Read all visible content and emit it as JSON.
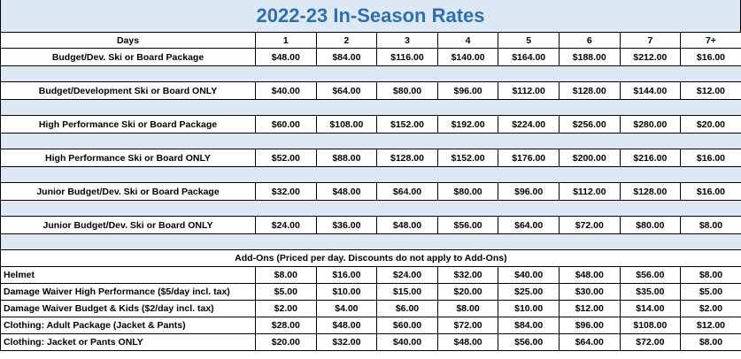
{
  "title": "2022-23 In-Season Rates",
  "header": {
    "days_label": "Days",
    "columns": [
      "1",
      "2",
      "3",
      "4",
      "5",
      "6",
      "7",
      "7+"
    ]
  },
  "packages": [
    {
      "name": "Budget/Dev. Ski or Board Package",
      "prices": [
        "$48.00",
        "$84.00",
        "$116.00",
        "$140.00",
        "$164.00",
        "$188.00",
        "$212.00",
        "$16.00"
      ]
    },
    {
      "name": "Budget/Development Ski or Board ONLY",
      "prices": [
        "$40.00",
        "$64.00",
        "$80.00",
        "$96.00",
        "$112.00",
        "$128.00",
        "$144.00",
        "$12.00"
      ]
    },
    {
      "name": "High Performance Ski or Board Package",
      "prices": [
        "$60.00",
        "$108.00",
        "$152.00",
        "$192.00",
        "$224.00",
        "$256.00",
        "$280.00",
        "$20.00"
      ]
    },
    {
      "name": "High Performance Ski or Board ONLY",
      "prices": [
        "$52.00",
        "$88.00",
        "$128.00",
        "$152.00",
        "$176.00",
        "$200.00",
        "$216.00",
        "$16.00"
      ]
    },
    {
      "name": "Junior Budget/Dev. Ski or Board Package",
      "prices": [
        "$32.00",
        "$48.00",
        "$64.00",
        "$80.00",
        "$96.00",
        "$112.00",
        "$128.00",
        "$16.00"
      ]
    },
    {
      "name": "Junior Budget/Dev. Ski or Board ONLY",
      "prices": [
        "$24.00",
        "$36.00",
        "$48.00",
        "$56.00",
        "$64.00",
        "$72.00",
        "$80.00",
        "$8.00"
      ]
    }
  ],
  "addons_header": "Add-Ons (Priced per day. Discounts do not apply to Add-Ons)",
  "addons": [
    {
      "name": "Helmet",
      "prices": [
        "$8.00",
        "$16.00",
        "$24.00",
        "$32.00",
        "$40.00",
        "$48.00",
        "$56.00",
        "$8.00"
      ]
    },
    {
      "name": "Damage Waiver High Performance ($5/day incl. tax)",
      "prices": [
        "$5.00",
        "$10.00",
        "$15.00",
        "$20.00",
        "$25.00",
        "$30.00",
        "$35.00",
        "$5.00"
      ]
    },
    {
      "name": "Damage Waiver Budget & Kids ($2/day incl. tax)",
      "prices": [
        "$2.00",
        "$4.00",
        "$6.00",
        "$8.00",
        "$10.00",
        "$12.00",
        "$14.00",
        "$2.00"
      ]
    },
    {
      "name": "Clothing:  Adult Package (Jacket & Pants)",
      "prices": [
        "$28.00",
        "$48.00",
        "$60.00",
        "$72.00",
        "$84.00",
        "$96.00",
        "$108.00",
        "$12.00"
      ]
    },
    {
      "name": "Clothing: Jacket or Pants ONLY",
      "prices": [
        "$20.00",
        "$32.00",
        "$40.00",
        "$48.00",
        "$56.00",
        "$64.00",
        "$72.00",
        "$8.00"
      ]
    }
  ],
  "colors": {
    "title_text": "#2f6fb0",
    "band_fill": "#dce9f5"
  }
}
